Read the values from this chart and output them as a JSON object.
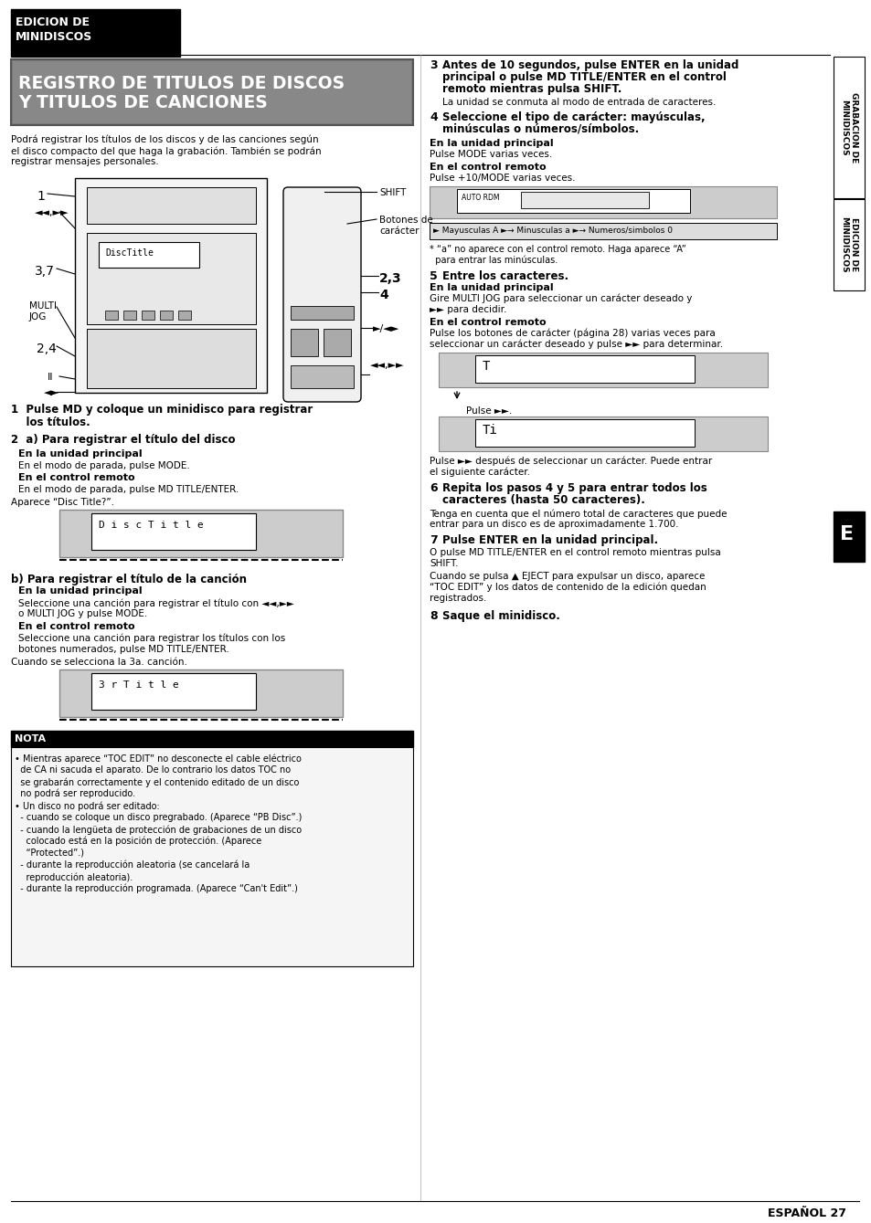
{
  "page_bg": "#ffffff",
  "top_header_line1": "EDICION DE",
  "top_header_line2": "MINIDISCOS",
  "banner_text_line1": "REGISTRO DE TITULOS DE DISCOS",
  "banner_text_line2": "Y TITULOS DE CANCIONES",
  "intro_text": "Podrá registrar los títulos de los discos y de las canciones según\nel disco compacto del que haga la grabación. También se podrán\nregistrar mensajes personales.",
  "step1_text_bold": "1  Pulse MD y coloque un minidisco para registrar",
  "step1_text2": "    los títulos.",
  "step2a_title": "2  a) Para registrar el título del disco",
  "step2a_sub1_bold": "En la unidad principal",
  "step2a_sub1_text": "En el modo de parada, pulse MODE.",
  "step2a_sub2_bold": "En el control remoto",
  "step2a_sub2_text": "En el modo de parada, pulse MD TITLE/ENTER.",
  "step2a_appears": "Aparece “Disc Title?”.",
  "step2b_title": "b) Para registrar el título de la canción",
  "step2b_sub1_bold": "En la unidad principal",
  "step2b_sub1_text": "Seleccione una canción para registrar el título con ◄◄,►►",
  "step2b_sub1_text2": "o MULTI JOG y pulse MODE.",
  "step2b_sub2_bold": "En el control remoto",
  "step2b_sub2_text": "Seleccione una canción para registrar los títulos con los",
  "step2b_sub2_text2": "botones numerados, pulse MD TITLE/ENTER.",
  "step2b_when": "Cuando se selecciona la 3a. canción.",
  "nota_title": "NOTA",
  "nota_items": [
    "• Mientras aparece “TOC EDIT” no desconecte el cable eléctrico",
    "  de CA ni sacuda el aparato. De lo contrario los datos TOC no",
    "  se grabarán correctamente y el contenido editado de un disco",
    "  no podrá ser reproducido.",
    "• Un disco no podrá ser editado:",
    "  - cuando se coloque un disco pregrabado. (Aparece “PB Disc”.)",
    "  - cuando la lengüeta de protección de grabaciones de un disco",
    "    colocado está en la posición de protección. (Aparece",
    "    “Protected”.)",
    "  - durante la reproducción aleatoria (se cancelará la",
    "    reproducción aleatoria).",
    "  - durante la reproducción programada. (Aparece “Can't Edit”.)"
  ],
  "right_step3_num": "3",
  "right_step3_text_bold1": "Antes de 10 segundos, pulse ENTER en la unidad",
  "right_step3_text_bold2": "principal o pulse MD TITLE/ENTER en el control",
  "right_step3_text_bold3": "remoto mientras pulsa SHIFT.",
  "right_step3_text_normal": "La unidad se conmuta al modo de entrada de caracteres.",
  "right_step4_num": "4",
  "right_step4_text_bold1": "Seleccione el tipo de carácter: mayúsculas,",
  "right_step4_text_bold2": "minúsculas o números/símbolos.",
  "right_step4_sub1_bold": "En la unidad principal",
  "right_step4_sub1_text": "Pulse MODE varias veces.",
  "right_step4_sub2_bold": "En el control remoto",
  "right_step4_sub2_text": "Pulse +10/MODE varias veces.",
  "right_step4_display": "► Mayúsculas A ►→ Minúsculas a ►→ Números/símbolos 0",
  "right_step4_note1": "* “a” no aparece con el control remoto. Haga aparece “A”",
  "right_step4_note2": "  para entrar las minúsculas.",
  "right_step5_num": "5",
  "right_step5_title": "Entre los caracteres.",
  "right_step5_sub1_bold": "En la unidad principal",
  "right_step5_sub1_text1": "Gire MULTI JOG para seleccionar un carácter deseado y",
  "right_step5_sub1_text2": "►► para decidir.",
  "right_step5_sub2_bold": "En el control remoto",
  "right_step5_sub2_text1": "Pulse los botones de carácter (página 28) varias veces para",
  "right_step5_sub2_text2": "seleccionar un carácter deseado y pulse ►► para determinar.",
  "right_step5_pulse": "Pulse ►►.",
  "right_step5_after1": "Pulse ►► después de seleccionar un carácter. Puede entrar",
  "right_step5_after2": "el siguiente carácter.",
  "right_step6_num": "6",
  "right_step6_text_bold1": "Repita los pasos 4 y 5 para entrar todos los",
  "right_step6_text_bold2": "caracteres (hasta 50 caracteres).",
  "right_step6_text_normal1": "Tenga en cuenta que el número total de caracteres que puede",
  "right_step6_text_normal2": "entrar para un disco es de aproximadamente 1.700.",
  "right_step7_num": "7",
  "right_step7_text_bold": "Pulse ENTER en la unidad principal.",
  "right_step7_text_normal1": "O pulse MD TITLE/ENTER en el control remoto mientras pulsa",
  "right_step7_text_normal2": "SHIFT.",
  "right_step7_eject1": "Cuando se pulsa ▲ EJECT para expulsar un disco, aparece",
  "right_step7_eject2": "“TOC EDIT” y los datos de contenido de la edición quedan",
  "right_step7_eject3": "registrados.",
  "right_step8_num": "8",
  "right_step8_text_bold": "Saque el minidisco.",
  "sidebar_grabacion": "GRABACION DE",
  "sidebar_grabacion2": "MINIDISCOS",
  "sidebar_edicion": "EDICION DE",
  "sidebar_edicion2": "MINIDISCOS",
  "e_label": "E",
  "footer_text": "ESPAÑOL 27",
  "label_shift": "SHIFT",
  "label_botones": "Botones de",
  "label_caracter": "carácter",
  "label_1": "1",
  "label_37": "3,7",
  "label_multi": "MULTI",
  "label_jog": "JOG",
  "label_24": "2,4",
  "label_ii": "II",
  "label_23": "2,3",
  "label_4": "4"
}
